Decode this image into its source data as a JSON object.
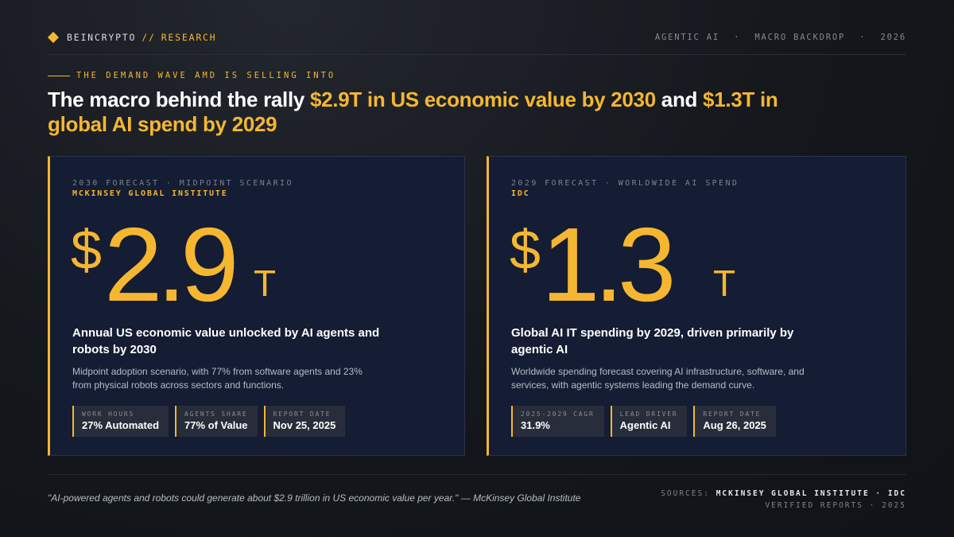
{
  "header": {
    "brand": "BEINCRYPTO",
    "brand_sep": "//",
    "brand_section": "RESEARCH",
    "tags": [
      "AGENTIC AI",
      "MACRO BACKDROP",
      "2026"
    ],
    "tag_separator": "·"
  },
  "eyebrow": "THE DEMAND WAVE AMD IS SELLING INTO",
  "title": {
    "part1": "The macro behind the rally ",
    "highlight1": "$2.9T in US economic value by 2030",
    "part2": " and ",
    "highlight2": "$1.3T in global AI spend by 2029"
  },
  "cards": [
    {
      "category": "2030 FORECAST · MIDPOINT SCENARIO",
      "source": "MCKINSEY GLOBAL INSTITUTE",
      "currency": "$",
      "value": "2.9",
      "unit": "T",
      "headline": "Annual US economic value unlocked by AI agents and robots by 2030",
      "description": "Midpoint adoption scenario, with 77% from software agents and 23% from physical robots across sectors and functions.",
      "stats": [
        {
          "label": "WORK HOURS",
          "value": "27% Automated"
        },
        {
          "label": "AGENTS SHARE",
          "value": "77% of Value"
        },
        {
          "label": "REPORT DATE",
          "value": "Nov 25, 2025"
        }
      ]
    },
    {
      "category": "2029 FORECAST · WORLDWIDE AI SPEND",
      "source": "IDC",
      "currency": "$",
      "value": "1.3",
      "unit": "T",
      "headline": "Global AI IT spending by 2029, driven primarily by agentic AI",
      "description": "Worldwide spending forecast covering AI infrastructure, software, and services, with agentic systems leading the demand curve.",
      "stats": [
        {
          "label": "2025-2029 CAGR",
          "value": "31.9%"
        },
        {
          "label": "LEAD DRIVER",
          "value": "Agentic AI"
        },
        {
          "label": "REPORT DATE",
          "value": "Aug 26, 2025"
        }
      ]
    }
  ],
  "footer": {
    "quote": "\"AI-powered agents and robots could generate about $2.9 trillion in US economic value per year.\"",
    "attribution": "— McKinsey Global Institute",
    "sources_label": "SOURCES:",
    "sources_value": "MCKINSEY GLOBAL INSTITUTE · IDC",
    "verified": "VERIFIED REPORTS · 2025"
  },
  "colors": {
    "accent": "#f5b731",
    "background": "#14171c",
    "card": "#141d33"
  }
}
